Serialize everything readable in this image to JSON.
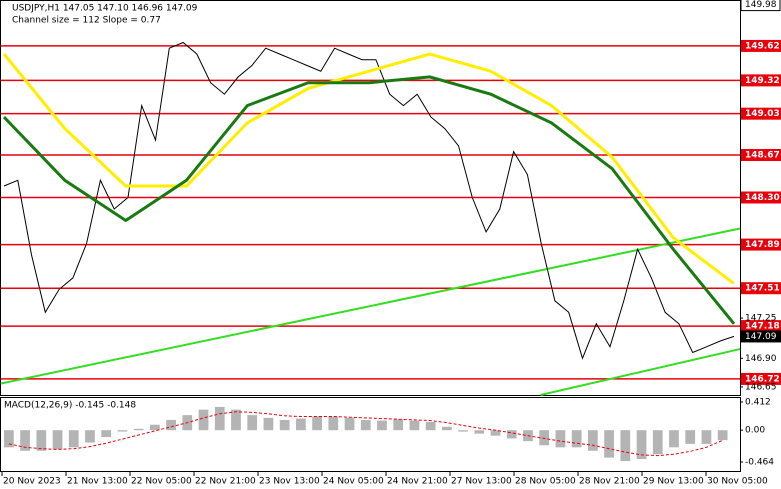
{
  "chart_data": [
    {
      "type": "line",
      "title": "USDJPY,H1  147.05 147.10 146.96 147.09",
      "subtitle": "Channel size = 112 Slope = 0.77",
      "x_labels": [
        "20 Nov 2023",
        "21 Nov 13:00",
        "22 Nov 05:00",
        "22 Nov 21:00",
        "23 Nov 13:00",
        "24 Nov 05:00",
        "24 Nov 21:00",
        "27 Nov 13:00",
        "28 Nov 05:00",
        "28 Nov 21:00",
        "29 Nov 13:00",
        "30 Nov 05:00"
      ],
      "ylim": [
        146.58,
        150.02
      ],
      "yticks": [
        147.25,
        {
          "value": 146.9,
          "label": "146.90"
        },
        146.65
      ],
      "top_label": 149.98,
      "current_price": 147.09,
      "level_color": "#e8000b",
      "levels": [
        149.62,
        149.32,
        149.03,
        148.67,
        {
          "value": 148.3,
          "label": "148.30"
        },
        147.89,
        147.51,
        147.18,
        146.72
      ],
      "series": [
        {
          "color": "#000000",
          "values": [
            148.4,
            148.45,
            147.8,
            147.3,
            147.5,
            147.6,
            147.9,
            148.45,
            148.2,
            148.3,
            149.1,
            148.8,
            149.6,
            149.65,
            149.55,
            149.3,
            149.2,
            149.35,
            149.45,
            149.6,
            149.55,
            149.5,
            149.45,
            149.4,
            149.6,
            149.55,
            149.5,
            149.5,
            149.2,
            149.1,
            149.2,
            149.0,
            148.9,
            148.75,
            148.3,
            148.0,
            148.2,
            148.7,
            148.5,
            147.9,
            147.4,
            147.3,
            146.9,
            147.2,
            147.0,
            147.4,
            147.85,
            147.6,
            147.3,
            147.2,
            146.95,
            147.0,
            147.05,
            147.09
          ]
        },
        {
          "color": "#ffee00",
          "values": [
            149.55,
            148.9,
            148.4,
            148.4,
            148.95,
            149.25,
            149.4,
            149.55,
            149.4,
            149.1,
            148.65,
            147.95,
            147.55
          ]
        },
        {
          "color": "#1a7a12",
          "values": [
            149.0,
            148.45,
            148.1,
            148.45,
            149.1,
            149.3,
            149.3,
            149.35,
            149.2,
            148.95,
            148.55,
            147.85,
            147.2
          ]
        }
      ],
      "trend_color": "#33dd22",
      "trend_lines": [
        [
          146.68,
          148.03
        ],
        [
          146.58,
          146.98
        ]
      ]
    },
    {
      "type": "bar",
      "title": "MACD(12,26,9) -0.145 -0.148",
      "ylim": [
        -0.61,
        0.47
      ],
      "yticks": [
        0.412,
        {
          "value": 0,
          "label": "0.00"
        },
        -0.464
      ],
      "color": "#b4b4b4",
      "values": [
        -0.25,
        -0.3,
        -0.3,
        -0.28,
        -0.25,
        -0.18,
        -0.1,
        -0.02,
        0.02,
        0.08,
        0.15,
        0.22,
        0.3,
        0.34,
        0.3,
        0.22,
        0.18,
        0.15,
        0.17,
        0.2,
        0.2,
        0.18,
        0.15,
        0.14,
        0.16,
        0.14,
        0.12,
        0.05,
        -0.02,
        -0.05,
        -0.08,
        -0.12,
        -0.16,
        -0.22,
        -0.25,
        -0.25,
        -0.3,
        -0.4,
        -0.45,
        -0.42,
        -0.35,
        -0.25,
        -0.2,
        -0.2,
        -0.145
      ],
      "signal_color": "#e8000b",
      "signal": [
        -0.2,
        -0.25,
        -0.27,
        -0.28,
        -0.27,
        -0.24,
        -0.19,
        -0.13,
        -0.07,
        -0.01,
        0.05,
        0.11,
        0.18,
        0.24,
        0.27,
        0.26,
        0.24,
        0.21,
        0.2,
        0.2,
        0.2,
        0.19,
        0.18,
        0.17,
        0.16,
        0.15,
        0.14,
        0.11,
        0.07,
        0.03,
        0.0,
        -0.04,
        -0.08,
        -0.12,
        -0.16,
        -0.19,
        -0.22,
        -0.27,
        -0.32,
        -0.36,
        -0.37,
        -0.35,
        -0.31,
        -0.25,
        -0.148
      ]
    }
  ]
}
